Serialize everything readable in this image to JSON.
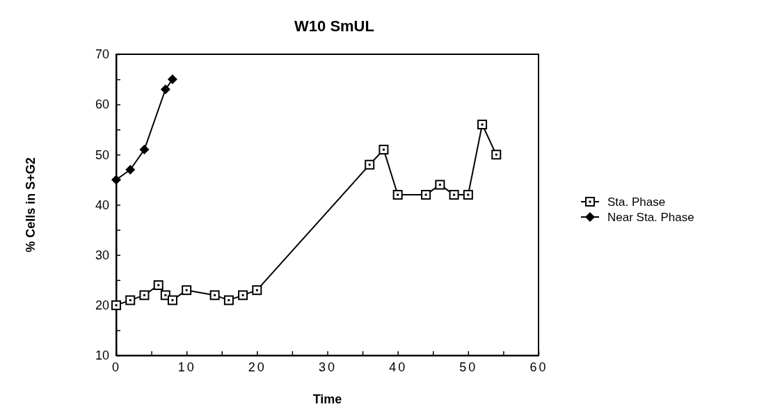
{
  "chart_data": {
    "type": "line",
    "title": "W10 SmUL",
    "xlabel": "Time",
    "ylabel": "% Cells in S+G2",
    "xlim": [
      0,
      60
    ],
    "xticks": [
      0,
      {
        "value": 5,
        "label": null
      },
      10,
      {
        "value": 15,
        "label": null
      },
      20,
      {
        "value": 25,
        "label": null
      },
      30,
      {
        "value": 35,
        "label": null
      },
      40,
      {
        "value": 45,
        "label": null
      },
      50,
      {
        "value": 55,
        "label": null
      },
      60
    ],
    "ylim": [
      10,
      70
    ],
    "yticks": [
      10,
      {
        "value": 15,
        "label": null
      },
      20,
      {
        "value": 25,
        "label": null
      },
      30,
      {
        "value": 35,
        "label": null
      },
      40,
      {
        "value": 45,
        "label": null
      },
      50,
      {
        "value": 55,
        "label": null
      },
      60,
      {
        "value": 65,
        "label": null
      },
      70
    ],
    "grid": false,
    "legend": "right",
    "series": [
      {
        "name": "Sta. Phase",
        "color": "#000000",
        "marker": "square",
        "x": [
          0,
          2,
          4,
          6,
          7,
          8,
          10,
          14,
          16,
          18,
          20,
          36,
          38,
          40,
          44,
          46,
          48,
          50,
          52,
          54
        ],
        "values": [
          20,
          21,
          22,
          24,
          22,
          21,
          23,
          22,
          21,
          22,
          23,
          48,
          51,
          42,
          42,
          44,
          42,
          42,
          56,
          50
        ]
      },
      {
        "name": "Near Sta. Phase",
        "color": "#000000",
        "marker": "diamond",
        "x": [
          0,
          2,
          4,
          7,
          8
        ],
        "values": [
          45,
          47,
          51,
          63,
          65
        ]
      }
    ]
  }
}
